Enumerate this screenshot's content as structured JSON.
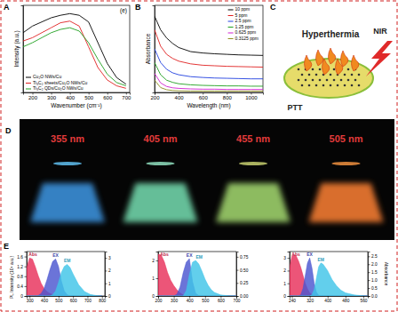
{
  "chart_data": [
    {
      "type": "line",
      "annotations": [
        "A",
        "(e)"
      ],
      "xlabel": "Wavenumber (cm⁻¹)",
      "ylabel": "Intensity (a.u.)",
      "x": [
        150,
        200,
        250,
        300,
        350,
        400,
        450,
        500,
        550,
        600,
        650,
        700
      ],
      "xlim": [
        150,
        720
      ],
      "xticks": [
        200,
        300,
        400,
        500,
        600,
        700
      ],
      "ylim": [
        0,
        1.05
      ],
      "tick_labels": "x",
      "legend": "bottom-left",
      "series": [
        {
          "name": "Cu₂O NWs/Cu",
          "color": "#000000",
          "values": [
            0.72,
            0.8,
            0.85,
            0.9,
            0.93,
            0.95,
            0.93,
            0.85,
            0.6,
            0.35,
            0.18,
            0.1
          ]
        },
        {
          "name": "Ti₃C₂ sheets/Cu₂O NWs/Cu",
          "color": "#e02020",
          "values": [
            0.62,
            0.66,
            0.72,
            0.78,
            0.84,
            0.86,
            0.8,
            0.55,
            0.3,
            0.15,
            0.08,
            0.05
          ]
        },
        {
          "name": "Ti₃C₂ QDs/Cu₂O NWs/Cu",
          "color": "#20a020",
          "values": [
            0.55,
            0.6,
            0.66,
            0.72,
            0.76,
            0.78,
            0.74,
            0.6,
            0.4,
            0.22,
            0.12,
            0.08
          ]
        }
      ]
    },
    {
      "type": "line",
      "annotations": [
        "B"
      ],
      "xlabel": "Wavelength (nm)",
      "ylabel": "Absorbance",
      "x": [
        200,
        250,
        300,
        350,
        400,
        500,
        600,
        700,
        800,
        900,
        1000,
        1100
      ],
      "xlim": [
        200,
        1100
      ],
      "xticks": [
        200,
        400,
        600,
        800,
        1000
      ],
      "ylim": [
        0,
        3.2
      ],
      "tick_labels": "x",
      "legend": "top-right",
      "series": [
        {
          "name": "10 ppm",
          "color": "#000000",
          "values": [
            2.8,
            2.3,
            2.0,
            1.8,
            1.65,
            1.5,
            1.45,
            1.42,
            1.4,
            1.38,
            1.37,
            1.36
          ]
        },
        {
          "name": "5 ppm",
          "color": "#e02020",
          "values": [
            2.3,
            1.7,
            1.4,
            1.25,
            1.15,
            1.05,
            1.0,
            0.98,
            0.96,
            0.95,
            0.94,
            0.93
          ]
        },
        {
          "name": "2.5 ppm",
          "color": "#2040e0",
          "values": [
            1.6,
            1.1,
            0.85,
            0.72,
            0.65,
            0.58,
            0.55,
            0.53,
            0.52,
            0.51,
            0.5,
            0.5
          ]
        },
        {
          "name": "1.25 ppm",
          "color": "#20a020",
          "values": [
            1.1,
            0.65,
            0.45,
            0.37,
            0.32,
            0.28,
            0.26,
            0.25,
            0.24,
            0.24,
            0.23,
            0.23
          ]
        },
        {
          "name": "0.625 ppm",
          "color": "#d020d0",
          "values": [
            0.7,
            0.35,
            0.22,
            0.17,
            0.15,
            0.13,
            0.12,
            0.12,
            0.11,
            0.11,
            0.11,
            0.11
          ]
        },
        {
          "name": "0.3125 ppm",
          "color": "#909020",
          "values": [
            0.45,
            0.18,
            0.1,
            0.07,
            0.06,
            0.05,
            0.05,
            0.05,
            0.05,
            0.05,
            0.05,
            0.05
          ]
        }
      ]
    },
    {
      "type": "area",
      "annotations": [
        "E"
      ],
      "ylabel": "PL Intensity (10⁴ a.u.)",
      "x": [
        280,
        300,
        320,
        340,
        360,
        380,
        400,
        420,
        440,
        460,
        480,
        500,
        520,
        540,
        560,
        580,
        600,
        640,
        680,
        720,
        760,
        800
      ],
      "xlim": [
        280,
        820
      ],
      "xticks": [
        300,
        400,
        500,
        600,
        700,
        800
      ],
      "ylim": [
        0,
        1.8
      ],
      "yticks": [
        0,
        0.4,
        0.8,
        1.2,
        1.6
      ],
      "y2lim": [
        0,
        3.5
      ],
      "y2ticks": [
        0,
        1,
        2,
        3
      ],
      "series": [
        {
          "name": "Abs",
          "color": "#e8305a",
          "axis": "y2",
          "values": [
            2.2,
            3.0,
            2.9,
            2.3,
            1.6,
            1.0,
            0.6,
            0.35,
            0.2,
            0.1,
            0.05,
            0,
            0,
            0,
            0,
            0,
            0,
            0,
            0,
            0,
            0,
            0
          ]
        },
        {
          "name": "EX",
          "color": "#4a55d0",
          "values": [
            0,
            0,
            0,
            0,
            0.02,
            0.1,
            0.3,
            0.65,
            1.05,
            1.4,
            1.5,
            1.2,
            0.6,
            0.2,
            0.05,
            0,
            0,
            0,
            0,
            0,
            0,
            0
          ]
        },
        {
          "name": "EM",
          "color": "#40c4e8",
          "values": [
            0,
            0,
            0,
            0,
            0,
            0,
            0,
            0,
            0,
            0.05,
            0.2,
            0.55,
            0.95,
            1.2,
            1.28,
            1.15,
            0.9,
            0.45,
            0.18,
            0.06,
            0.02,
            0
          ]
        }
      ]
    },
    {
      "type": "area",
      "x": [
        200,
        220,
        240,
        260,
        280,
        300,
        320,
        340,
        360,
        380,
        400,
        420,
        440,
        460,
        480,
        500,
        520,
        540,
        560,
        600,
        650,
        700
      ],
      "xlim": [
        200,
        700
      ],
      "xticks": [
        200,
        300,
        400,
        500,
        600,
        700
      ],
      "ylim": [
        0,
        2.5
      ],
      "yticks": [
        0,
        1,
        2
      ],
      "y2lim": [
        0,
        0.85
      ],
      "y2ticks": [
        {
          "value": 0,
          "label": "0.00"
        },
        0.25,
        {
          "value": 0.5,
          "label": "0.50"
        },
        0.75
      ],
      "series": [
        {
          "name": "Abs",
          "color": "#e8305a",
          "axis": "y2",
          "values": [
            0.8,
            0.78,
            0.65,
            0.45,
            0.3,
            0.2,
            0.12,
            0.06,
            0.02,
            0,
            0,
            0,
            0,
            0,
            0,
            0,
            0,
            0,
            0,
            0,
            0,
            0
          ]
        },
        {
          "name": "EX",
          "color": "#4a55d0",
          "values": [
            0,
            0,
            0,
            0,
            0,
            0,
            0.1,
            0.5,
            1.3,
            1.9,
            2.1,
            0.8,
            0.15,
            0.02,
            0,
            0,
            0,
            0,
            0,
            0,
            0,
            0
          ]
        },
        {
          "name": "EM",
          "color": "#40c4e8",
          "values": [
            0,
            0,
            0,
            0,
            0,
            0,
            0,
            0,
            0,
            0.3,
            1.2,
            1.9,
            2.0,
            1.8,
            1.4,
            0.95,
            0.6,
            0.35,
            0.2,
            0.06,
            0.01,
            0
          ]
        }
      ]
    },
    {
      "type": "area",
      "y2label": "Absorbance",
      "x": [
        230,
        240,
        250,
        260,
        270,
        280,
        290,
        300,
        310,
        320,
        330,
        340,
        350,
        360,
        370,
        380,
        400,
        420,
        440,
        460,
        480,
        520,
        560,
        580
      ],
      "xlim": [
        230,
        580
      ],
      "xticks": [
        240,
        320,
        400,
        480,
        560
      ],
      "ylim": [
        0,
        3.5
      ],
      "yticks": [
        0,
        1,
        2,
        3
      ],
      "y2lim": [
        0,
        2.8
      ],
      "y2ticks": [
        {
          "value": 0,
          "label": "0.0"
        },
        0.5,
        {
          "value": 1,
          "label": "1.0"
        },
        1.5,
        {
          "value": 2,
          "label": "2.0"
        },
        2.5
      ],
      "series": [
        {
          "name": "Abs",
          "color": "#e8305a",
          "axis": "y2",
          "values": [
            1.8,
            2.5,
            2.6,
            2.5,
            2.2,
            1.8,
            1.3,
            0.8,
            0.45,
            0.2,
            0.08,
            0.02,
            0,
            0,
            0,
            0,
            0,
            0,
            0,
            0,
            0,
            0,
            0,
            0
          ]
        },
        {
          "name": "EX",
          "color": "#4a55d0",
          "values": [
            0,
            0,
            0,
            0,
            0,
            0.1,
            0.6,
            1.6,
            2.6,
            3.0,
            2.2,
            1.0,
            0.3,
            0.05,
            0,
            0,
            0,
            0,
            0,
            0,
            0,
            0,
            0,
            0
          ]
        },
        {
          "name": "EM",
          "color": "#40c4e8",
          "values": [
            0,
            0,
            0,
            0,
            0,
            0,
            0,
            0,
            0,
            0,
            0.1,
            0.5,
            1.4,
            2.3,
            2.6,
            2.5,
            2.0,
            1.3,
            0.8,
            0.45,
            0.25,
            0.08,
            0.01,
            0
          ]
        }
      ]
    }
  ],
  "illustration": {
    "panel_label": "C",
    "labels": [
      "Hyperthermia",
      "NIR",
      "PTT"
    ]
  },
  "photos": {
    "panel_label": "D",
    "labels": [
      "355 nm",
      "405 nm",
      "455 nm",
      "505 nm"
    ]
  }
}
